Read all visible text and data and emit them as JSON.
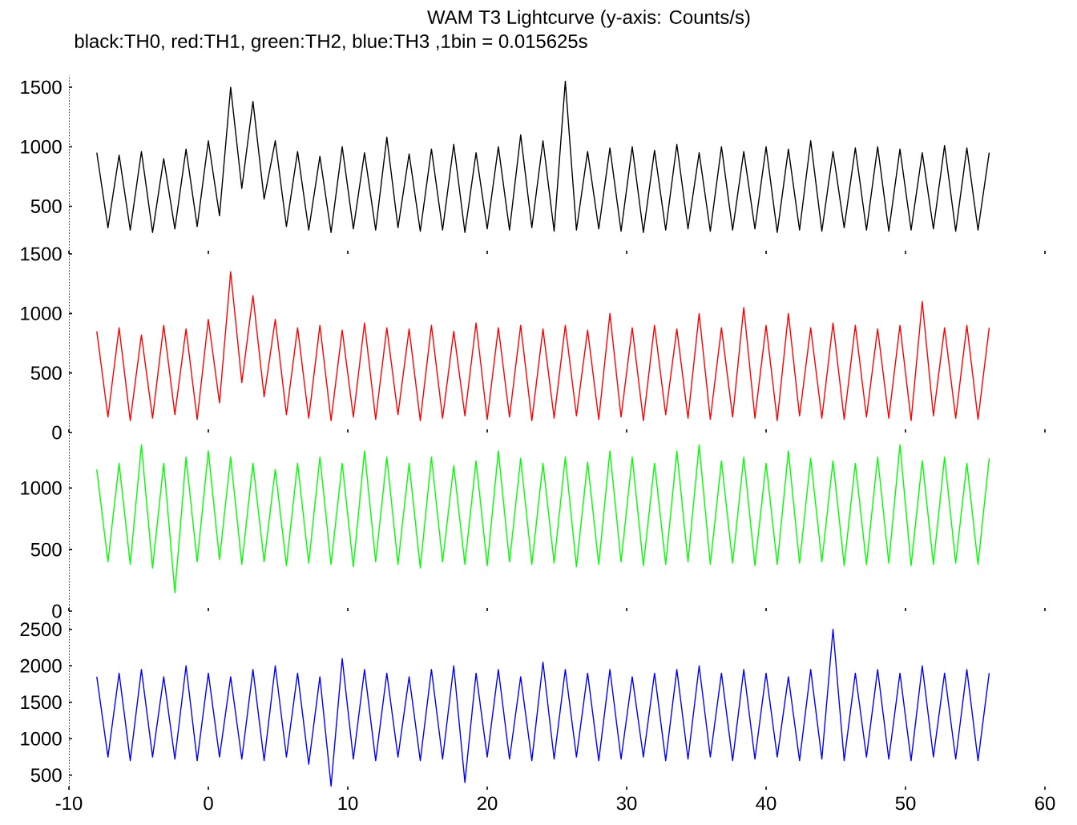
{
  "chart_data": [
    {
      "type": "line",
      "title": "WAM T3 Lightcurve (y-axis: Counts/s)",
      "subtitle": "black:TH0, red:TH1, green:TH2, blue:TH3 ,1bin = 0.015625s",
      "x": [
        -8,
        -7.2,
        -6.4,
        -5.6,
        -4.8,
        -4,
        -3.2,
        -2.4,
        -1.6,
        -0.8,
        0,
        0.8,
        1.6,
        2.4,
        3.2,
        4,
        4.8,
        5.6,
        6.4,
        7.2,
        8,
        8.8,
        9.6,
        10.4,
        11.2,
        12,
        12.8,
        13.6,
        14.4,
        15.2,
        16,
        16.8,
        17.6,
        18.4,
        19.2,
        20,
        20.8,
        21.6,
        22.4,
        23.2,
        24,
        24.8,
        25.6,
        26.4,
        27.2,
        28,
        28.8,
        29.6,
        30.4,
        31.2,
        32,
        32.8,
        33.6,
        34.4,
        35.2,
        36,
        36.8,
        37.6,
        38.4,
        39.2,
        40,
        40.8,
        41.6,
        42.4,
        43.2,
        44,
        44.8,
        45.6,
        46.4,
        47.2,
        48,
        48.8,
        49.6,
        50.4,
        51.2,
        52,
        52.8,
        53.6,
        54.4,
        55.2,
        56
      ],
      "series": [
        {
          "color": "#000000",
          "values": [
            950,
            320,
            930,
            300,
            960,
            280,
            900,
            310,
            980,
            330,
            1050,
            420,
            1500,
            650,
            1380,
            560,
            1050,
            330,
            960,
            300,
            920,
            280,
            1000,
            310,
            950,
            300,
            1080,
            320,
            940,
            290,
            980,
            300,
            1020,
            280,
            950,
            310,
            1000,
            300,
            1100,
            320,
            1050,
            290,
            1550,
            300,
            960,
            310,
            990,
            290,
            1000,
            280,
            970,
            300,
            1020,
            310,
            950,
            290,
            1000,
            300,
            960,
            310,
            1000,
            280,
            980,
            300,
            1050,
            290,
            960,
            320,
            990,
            300,
            1000,
            290,
            980,
            300,
            950,
            310,
            1010,
            290,
            990,
            300,
            950
          ]
        }
      ],
      "xlim": [
        -10,
        60
      ],
      "xticks": [
        -10,
        0,
        10,
        20,
        30,
        40,
        50,
        60
      ],
      "ylim": [
        100,
        1600
      ],
      "yticks": [
        500,
        1000,
        1500
      ],
      "tick_labels": "y"
    },
    {
      "type": "line",
      "x": [
        -8,
        -7.2,
        -6.4,
        -5.6,
        -4.8,
        -4,
        -3.2,
        -2.4,
        -1.6,
        -0.8,
        0,
        0.8,
        1.6,
        2.4,
        3.2,
        4,
        4.8,
        5.6,
        6.4,
        7.2,
        8,
        8.8,
        9.6,
        10.4,
        11.2,
        12,
        12.8,
        13.6,
        14.4,
        15.2,
        16,
        16.8,
        17.6,
        18.4,
        19.2,
        20,
        20.8,
        21.6,
        22.4,
        23.2,
        24,
        24.8,
        25.6,
        26.4,
        27.2,
        28,
        28.8,
        29.6,
        30.4,
        31.2,
        32,
        32.8,
        33.6,
        34.4,
        35.2,
        36,
        36.8,
        37.6,
        38.4,
        39.2,
        40,
        40.8,
        41.6,
        42.4,
        43.2,
        44,
        44.8,
        45.6,
        46.4,
        47.2,
        48,
        48.8,
        49.6,
        50.4,
        51.2,
        52,
        52.8,
        53.6,
        54.4,
        55.2,
        56
      ],
      "series": [
        {
          "color": "#ff0000",
          "values": [
            850,
            130,
            880,
            100,
            820,
            120,
            900,
            150,
            870,
            110,
            950,
            250,
            1350,
            420,
            1150,
            300,
            950,
            150,
            880,
            120,
            900,
            100,
            860,
            130,
            920,
            110,
            880,
            150,
            870,
            100,
            900,
            120,
            850,
            140,
            920,
            110,
            880,
            130,
            900,
            100,
            870,
            120,
            900,
            140,
            860,
            110,
            1000,
            130,
            880,
            100,
            900,
            150,
            870,
            120,
            1000,
            110,
            880,
            130,
            1050,
            120,
            900,
            100,
            1000,
            140,
            880,
            120,
            920,
            110,
            900,
            130,
            870,
            120,
            900,
            100,
            1100,
            140,
            880,
            120,
            900,
            110,
            880
          ]
        }
      ],
      "xlim": [
        -10,
        60
      ],
      "xticks": [
        -10,
        0,
        10,
        20,
        30,
        40,
        50,
        60
      ],
      "ylim": [
        0,
        1500
      ],
      "yticks": [
        0,
        500,
        1000,
        1500
      ],
      "tick_labels": "y"
    },
    {
      "type": "line",
      "x": [
        -8,
        -7.2,
        -6.4,
        -5.6,
        -4.8,
        -4,
        -3.2,
        -2.4,
        -1.6,
        -0.8,
        0,
        0.8,
        1.6,
        2.4,
        3.2,
        4,
        4.8,
        5.6,
        6.4,
        7.2,
        8,
        8.8,
        9.6,
        10.4,
        11.2,
        12,
        12.8,
        13.6,
        14.4,
        15.2,
        16,
        16.8,
        17.6,
        18.4,
        19.2,
        20,
        20.8,
        21.6,
        22.4,
        23.2,
        24,
        24.8,
        25.6,
        26.4,
        27.2,
        28,
        28.8,
        29.6,
        30.4,
        31.2,
        32,
        32.8,
        33.6,
        34.4,
        35.2,
        36,
        36.8,
        37.6,
        38.4,
        39.2,
        40,
        40.8,
        41.6,
        42.4,
        43.2,
        44,
        44.8,
        45.6,
        46.4,
        47.2,
        48,
        48.8,
        49.6,
        50.4,
        51.2,
        52,
        52.8,
        53.6,
        54.4,
        55.2,
        56
      ],
      "series": [
        {
          "color": "#00ff00",
          "values": [
            1150,
            400,
            1200,
            380,
            1350,
            350,
            1200,
            150,
            1250,
            400,
            1300,
            420,
            1250,
            380,
            1200,
            400,
            1150,
            370,
            1200,
            390,
            1250,
            380,
            1200,
            360,
            1300,
            400,
            1250,
            380,
            1200,
            350,
            1250,
            400,
            1180,
            380,
            1220,
            370,
            1300,
            400,
            1240,
            380,
            1200,
            390,
            1250,
            360,
            1210,
            380,
            1300,
            400,
            1250,
            370,
            1200,
            380,
            1300,
            400,
            1350,
            380,
            1220,
            390,
            1250,
            370,
            1200,
            380,
            1300,
            390,
            1240,
            400,
            1220,
            370,
            1200,
            380,
            1250,
            390,
            1350,
            370,
            1220,
            380,
            1250,
            390,
            1200,
            380,
            1240
          ]
        }
      ],
      "xlim": [
        -10,
        60
      ],
      "xticks": [
        -10,
        0,
        10,
        20,
        30,
        40,
        50,
        60
      ],
      "ylim": [
        0,
        1450
      ],
      "yticks": [
        0,
        500,
        1000
      ],
      "tick_labels": "y"
    },
    {
      "type": "line",
      "x": [
        -8,
        -7.2,
        -6.4,
        -5.6,
        -4.8,
        -4,
        -3.2,
        -2.4,
        -1.6,
        -0.8,
        0,
        0.8,
        1.6,
        2.4,
        3.2,
        4,
        4.8,
        5.6,
        6.4,
        7.2,
        8,
        8.8,
        9.6,
        10.4,
        11.2,
        12,
        12.8,
        13.6,
        14.4,
        15.2,
        16,
        16.8,
        17.6,
        18.4,
        19.2,
        20,
        20.8,
        21.6,
        22.4,
        23.2,
        24,
        24.8,
        25.6,
        26.4,
        27.2,
        28,
        28.8,
        29.6,
        30.4,
        31.2,
        32,
        32.8,
        33.6,
        34.4,
        35.2,
        36,
        36.8,
        37.6,
        38.4,
        39.2,
        40,
        40.8,
        41.6,
        42.4,
        43.2,
        44,
        44.8,
        45.6,
        46.4,
        47.2,
        48,
        48.8,
        49.6,
        50.4,
        51.2,
        52,
        52.8,
        53.6,
        54.4,
        55.2,
        56
      ],
      "series": [
        {
          "color": "#0000ff",
          "values": [
            1850,
            750,
            1900,
            700,
            1950,
            750,
            1850,
            720,
            2000,
            700,
            1900,
            750,
            1850,
            720,
            1950,
            700,
            2000,
            750,
            1900,
            650,
            1850,
            350,
            2100,
            720,
            1950,
            700,
            1900,
            750,
            1850,
            700,
            1950,
            720,
            2000,
            400,
            1900,
            750,
            1950,
            720,
            1850,
            700,
            2050,
            720,
            1950,
            750,
            1900,
            700,
            1950,
            720,
            1850,
            750,
            1900,
            700,
            1950,
            720,
            2000,
            750,
            1900,
            700,
            1950,
            720,
            1900,
            750,
            1850,
            700,
            1950,
            720,
            2500,
            700,
            1900,
            750,
            1950,
            720,
            1900,
            700,
            2000,
            750,
            1900,
            720,
            1950,
            700,
            1900
          ]
        }
      ],
      "xlim": [
        -10,
        60
      ],
      "xticks": [
        -10,
        0,
        10,
        20,
        30,
        40,
        50,
        60
      ],
      "ylim": [
        300,
        2750
      ],
      "yticks": [
        500,
        1000,
        1500,
        2000,
        2500
      ]
    }
  ]
}
